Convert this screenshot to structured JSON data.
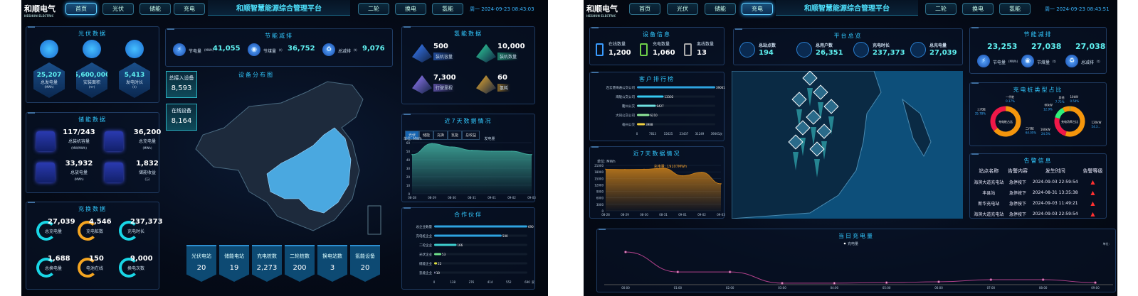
{
  "header": {
    "logo": "和顺电气",
    "logo_sub": "HESHUN ELECTRIC",
    "title": "和顺智慧能源综合管理平台",
    "nav_left": [
      "首页",
      "光伏",
      "储能",
      "充电"
    ],
    "nav_right": [
      "二轮",
      "换电",
      "氢能"
    ]
  },
  "d1": {
    "clock": "周一 2024-09-23 08:43:03",
    "active_nav": "首页",
    "pv": {
      "title": "光伏数据",
      "items": [
        {
          "value": "25,207",
          "label": "总发电量",
          "unit": "(MWh)"
        },
        {
          "value": "5,600,000",
          "label": "安装面积",
          "unit": "(m²)"
        },
        {
          "value": "5,413",
          "label": "发电时长",
          "unit": "(h)"
        }
      ]
    },
    "storage": {
      "title": "储能数据",
      "items": [
        {
          "value": "117/243",
          "label": "总装机容量",
          "unit": "(MW/MWh)"
        },
        {
          "value": "36,200",
          "label": "总充电量",
          "unit": "(MWh)"
        },
        {
          "value": "33,932",
          "label": "总放电量",
          "unit": "(MWh)"
        },
        {
          "value": "1,832",
          "label": "储能收益",
          "unit": "(万)"
        }
      ]
    },
    "charge": {
      "title": "充换数据",
      "items": [
        {
          "value": "27,039",
          "label": "总充电量",
          "color": "cyan"
        },
        {
          "value": "4,546",
          "label": "充电桩数",
          "color": "orange"
        },
        {
          "value": "237,373",
          "label": "充电时长",
          "color": "cyan"
        },
        {
          "value": "1,688",
          "label": "总换电量",
          "color": "cyan"
        },
        {
          "value": "150",
          "label": "电池在线",
          "color": "orange"
        },
        {
          "value": "9,000",
          "label": "换电次数",
          "color": "cyan"
        }
      ]
    },
    "saving": {
      "title": "节能减排",
      "items": [
        {
          "label": "节电量",
          "unit": "(MWh)",
          "value": "41,055"
        },
        {
          "label": "节煤量",
          "unit": "(t)",
          "value": "36,752"
        },
        {
          "label": "总减排",
          "unit": "(t)",
          "value": "9,076"
        }
      ]
    },
    "map": {
      "title": "设备分布图",
      "highlight_color": "#4aa8e0"
    },
    "devices": [
      {
        "label": "总接入设备",
        "value": "8,593"
      },
      {
        "label": "在线设备",
        "value": "8,164"
      }
    ],
    "stats": [
      {
        "label": "光伏电站",
        "value": "20"
      },
      {
        "label": "储能电站",
        "value": "19"
      },
      {
        "label": "充电桩数",
        "value": "2,273"
      },
      {
        "label": "二轮桩数",
        "value": "200"
      },
      {
        "label": "换电站数",
        "value": "3"
      },
      {
        "label": "氢能设备",
        "value": "20"
      }
    ],
    "hydrogen": {
      "title": "氢能数据",
      "items": [
        {
          "value": "500",
          "label": "装机容量",
          "unit": "(kW)",
          "color": "#3a7fff"
        },
        {
          "value": "10,000",
          "label": "装机数量",
          "unit": "(台)",
          "color": "#2fd7a0"
        },
        {
          "value": "7,300",
          "label": "行驶里程",
          "unit": "(km)",
          "color": "#9a7fff"
        },
        {
          "value": "60",
          "label": "氢耗",
          "unit": "(g/100km)",
          "color": "#f0b030"
        }
      ]
    },
    "week": {
      "title": "近7天数据情况",
      "tabs": [
        "光伏",
        "储能",
        "充换",
        "氢能",
        "总收益"
      ],
      "active_tab": "光伏"
    },
    "partners": {
      "title": "合作伙伴"
    }
  },
  "d2": {
    "clock": "周一 2024-09-23 08:43:51",
    "active_nav": "充电",
    "devinfo": {
      "title": "设备信息",
      "items": [
        {
          "label": "在线数量",
          "value": "1,200",
          "color": "#3a9cff"
        },
        {
          "label": "充电数量",
          "value": "1,060",
          "color": "#6fd04a"
        },
        {
          "label": "离线数量",
          "value": "13",
          "color": "#aaaaaa"
        }
      ]
    },
    "overview": {
      "title": "平台总览",
      "items": [
        {
          "label": "总站点数",
          "unit": "个",
          "value": "194"
        },
        {
          "label": "总用户数",
          "unit": "人",
          "value": "26,351"
        },
        {
          "label": "充电时长",
          "unit": "h",
          "value": "237,373"
        },
        {
          "label": "总充电量",
          "unit": "kWh",
          "value": "27,039"
        }
      ]
    },
    "saving": {
      "title": "节能减排",
      "items": [
        {
          "label": "节电量",
          "unit": "(MWh)",
          "value": "23,253"
        },
        {
          "label": "节煤量",
          "unit": "(t)",
          "value": "27,038"
        },
        {
          "label": "总减排",
          "unit": "(t)",
          "value": "27,038"
        }
      ]
    },
    "ranking": {
      "title": "客户排行榜"
    },
    "week": {
      "title": "近7天数据情况"
    },
    "pile": {
      "title": "充电桩类型占比"
    },
    "alarm": {
      "title": "告警信息",
      "columns": [
        "站点名称",
        "告警内容",
        "发生时间",
        "告警等级"
      ],
      "rows": [
        [
          "海滨大道充电站",
          "急停按下",
          "2024-09-03 22:59:54"
        ],
        [
          "丰县站",
          "急停按下",
          "2024-08-31 13:35:38"
        ],
        [
          "新华充电站",
          "急停按下",
          "2024-09-03 11:49:21"
        ],
        [
          "海滨大道充电站",
          "急停按下",
          "2024-09-03 22:59:54"
        ]
      ]
    },
    "today": {
      "title": "当日充电量"
    }
  },
  "chart_data": [
    {
      "id": "d1-week",
      "type": "area",
      "ylabel": "单位: MWh",
      "legend": [
        "发电量"
      ],
      "x": [
        "08-28",
        "08-29",
        "08-30",
        "08-31",
        "09-01",
        "09-02",
        "09-03"
      ],
      "series": [
        {
          "name": "发电量",
          "values": [
            46,
            59,
            55,
            51,
            50,
            50,
            46
          ]
        }
      ],
      "ylim": [
        0,
        60
      ],
      "yticks": [
        0,
        10,
        20,
        30,
        40,
        50,
        60
      ],
      "color": "#3fa89a"
    },
    {
      "id": "d1-partners",
      "type": "bar",
      "orientation": "horizontal",
      "categories": [
        "总企业数量",
        "充电桩企业",
        "二轮企业",
        "光伏企业",
        "储能企业",
        "氢能企业"
      ],
      "values": [
        690,
        500,
        166,
        53,
        22,
        10
      ],
      "xticks": [
        0,
        138,
        276,
        414,
        552,
        690
      ],
      "xunit": "家",
      "colors": [
        "#2ea3e0",
        "#2ea3e0",
        "#3fd0d0",
        "#6fe08a",
        "#e0e040",
        "#8888aa"
      ]
    },
    {
      "id": "d2-ranking",
      "type": "bar",
      "orientation": "horizontal",
      "categories": [
        "连云港海通公交公司",
        "海陵公交公司",
        "衢州公交",
        "大同公交公司",
        "亳州公交"
      ],
      "values": [
        39061,
        13302,
        9427,
        6210,
        3988
      ],
      "xticks": [
        0,
        7813,
        15625,
        23437,
        31249,
        39061
      ],
      "xunit": "次",
      "colors": [
        "#2ea3e0",
        "#35c8f0",
        "#6fe0e0",
        "#8fe89a",
        "#f0d040"
      ]
    },
    {
      "id": "d2-week",
      "type": "area",
      "ylabel": "单位: MWh",
      "annotation": "充电量: 19107MWh",
      "x": [
        "08-28",
        "08-29",
        "08-30",
        "08-31",
        "09-01",
        "09-02",
        "09-03"
      ],
      "series": [
        {
          "name": "充电量",
          "values": [
            19200,
            19100,
            19200,
            19700,
            16200,
            17800,
            12500
          ]
        }
      ],
      "ylim": [
        0,
        21000
      ],
      "yticks": [
        0,
        3000,
        6000,
        9000,
        12000,
        15000,
        18000,
        21000
      ],
      "color": "#c07a1a"
    },
    {
      "id": "d2-pile-gen",
      "type": "pie",
      "center_label": "充电桩占比",
      "slices": [
        {
          "name": "一代桩",
          "value": 0.17,
          "color": "#2fe07a"
        },
        {
          "name": "二代桩",
          "value": 64.05,
          "color": "#f5960c"
        },
        {
          "name": "三代桩",
          "value": 35.78,
          "color": "#f01848"
        }
      ]
    },
    {
      "id": "d2-pile-power",
      "type": "pie",
      "center_label": "充电功率占比",
      "slices": [
        {
          "name": "10kW",
          "value": 0.54,
          "color": "#2fe07a"
        },
        {
          "name": "120kW",
          "value": 54.31,
          "label": "54.3...",
          "color": "#f5960c"
        },
        {
          "name": "160kW",
          "value": 24.5,
          "color": "#f01848"
        },
        {
          "name": "60kW",
          "value": 12.9,
          "color": "#2ff07a"
        },
        {
          "name": "其他",
          "value": 7.75,
          "color": "#f5960c"
        }
      ]
    },
    {
      "id": "d2-today",
      "type": "line",
      "legend": [
        "充电量"
      ],
      "ylabel": "单位:",
      "x": [
        "00:00",
        "01:00",
        "02:00",
        "03:00",
        "04:00",
        "05:00",
        "06:00",
        "07:00",
        "08:00",
        "09:00"
      ],
      "series": [
        {
          "name": "充电量",
          "values": [
            12,
            4.5,
            4.5,
            0.3,
            0.3,
            0.5,
            0.8,
            1.6,
            1.6,
            0.5
          ]
        }
      ],
      "color": "#b0408a"
    }
  ]
}
